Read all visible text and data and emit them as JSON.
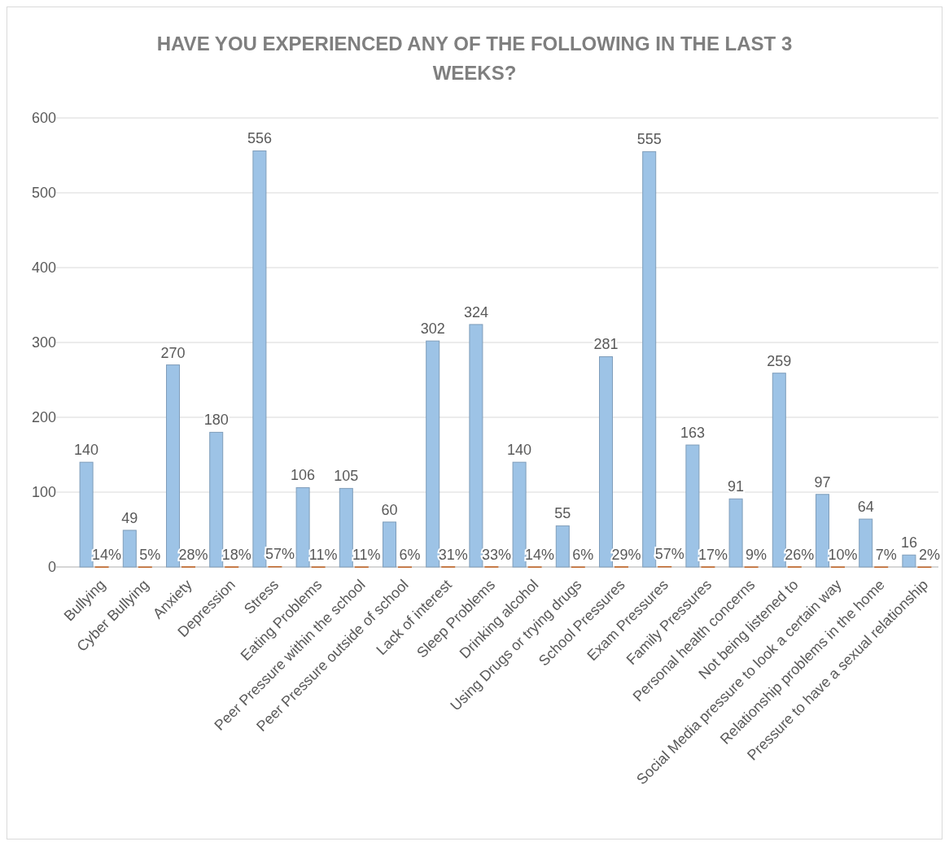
{
  "chart_data": {
    "type": "bar",
    "title": "HAVE YOU EXPERIENCED ANY OF THE FOLLOWING IN THE LAST 3 WEEKS?",
    "categories": [
      "Bullying",
      "Cyber Bullying",
      "Anxiety",
      "Depression",
      "Stress",
      "Eating Problems",
      "Peer Pressure within the school",
      "Peer Pressure outside of school",
      "Lack of interest",
      "Sleep Problems",
      "Drinking alcohol",
      "Using Drugs or trying drugs",
      "School Pressures",
      "Exam Pressures",
      "Family Pressures",
      "Personal health concerns",
      "Not being listened to",
      "Social Media pressure to look a certain way",
      "Relationship problems in the home",
      "Pressure to have a sexual relationship"
    ],
    "series": [
      {
        "color": "#9dc3e6",
        "values": [
          140,
          49,
          270,
          180,
          556,
          106,
          105,
          60,
          302,
          324,
          140,
          55,
          281,
          555,
          163,
          91,
          259,
          97,
          64,
          16
        ],
        "value_labels": [
          "140",
          "49",
          "270",
          "180",
          "556",
          "106",
          "105",
          "60",
          "302",
          "324",
          "140",
          "55",
          "281",
          "555",
          "163",
          "91",
          "259",
          "97",
          "64",
          "16"
        ]
      },
      {
        "color": "#ed7d31",
        "values": [
          0.14,
          0.05,
          0.28,
          0.18,
          0.57,
          0.11,
          0.11,
          0.06,
          0.31,
          0.33,
          0.14,
          0.06,
          0.29,
          0.57,
          0.17,
          0.09,
          0.26,
          0.1,
          0.07,
          0.02
        ],
        "value_labels": [
          "14%",
          "5%",
          "28%",
          "18%",
          "57%",
          "11%",
          "11%",
          "6%",
          "31%",
          "33%",
          "14%",
          "6%",
          "29%",
          "57%",
          "17%",
          "9%",
          "26%",
          "10%",
          "7%",
          "2%"
        ]
      }
    ],
    "ylim": [
      0,
      600
    ],
    "yticks": [
      0,
      100,
      200,
      300,
      400,
      500,
      600
    ],
    "grid": "y"
  }
}
